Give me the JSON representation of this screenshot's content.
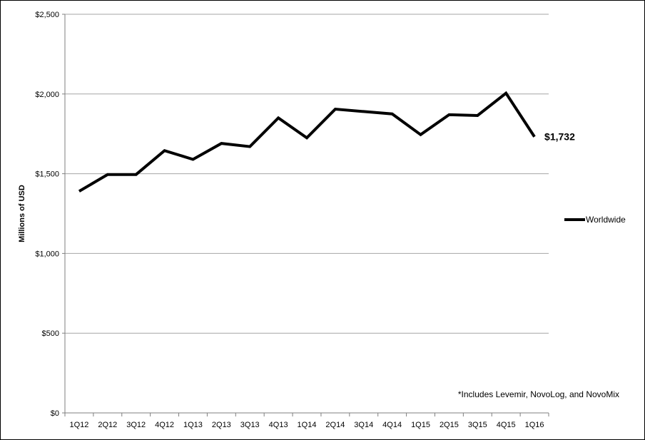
{
  "chart_data": {
    "type": "line",
    "categories": [
      "1Q12",
      "2Q12",
      "3Q12",
      "4Q12",
      "1Q13",
      "2Q13",
      "3Q13",
      "4Q13",
      "1Q14",
      "2Q14",
      "3Q14",
      "4Q14",
      "1Q15",
      "2Q15",
      "3Q15",
      "4Q15",
      "1Q16"
    ],
    "series": [
      {
        "name": "Worldwide",
        "values": [
          1390,
          1495,
          1495,
          1645,
          1590,
          1690,
          1670,
          1850,
          1725,
          1905,
          1890,
          1875,
          1745,
          1870,
          1865,
          2005,
          1732
        ],
        "color": "#000000"
      }
    ],
    "ylabel": "Millions of USD",
    "xlabel": "",
    "ylim": [
      0,
      2500
    ],
    "yticks": [
      0,
      500,
      1000,
      1500,
      2000,
      2500
    ],
    "ytick_labels": [
      "$0",
      "$500",
      "$1,000",
      "$1,500",
      "$2,000",
      "$2,500"
    ],
    "grid": true,
    "legend_position": "right",
    "callout": "$1,732",
    "footnote": "*Includes Levemir, NovoLog, and NovoMix"
  }
}
